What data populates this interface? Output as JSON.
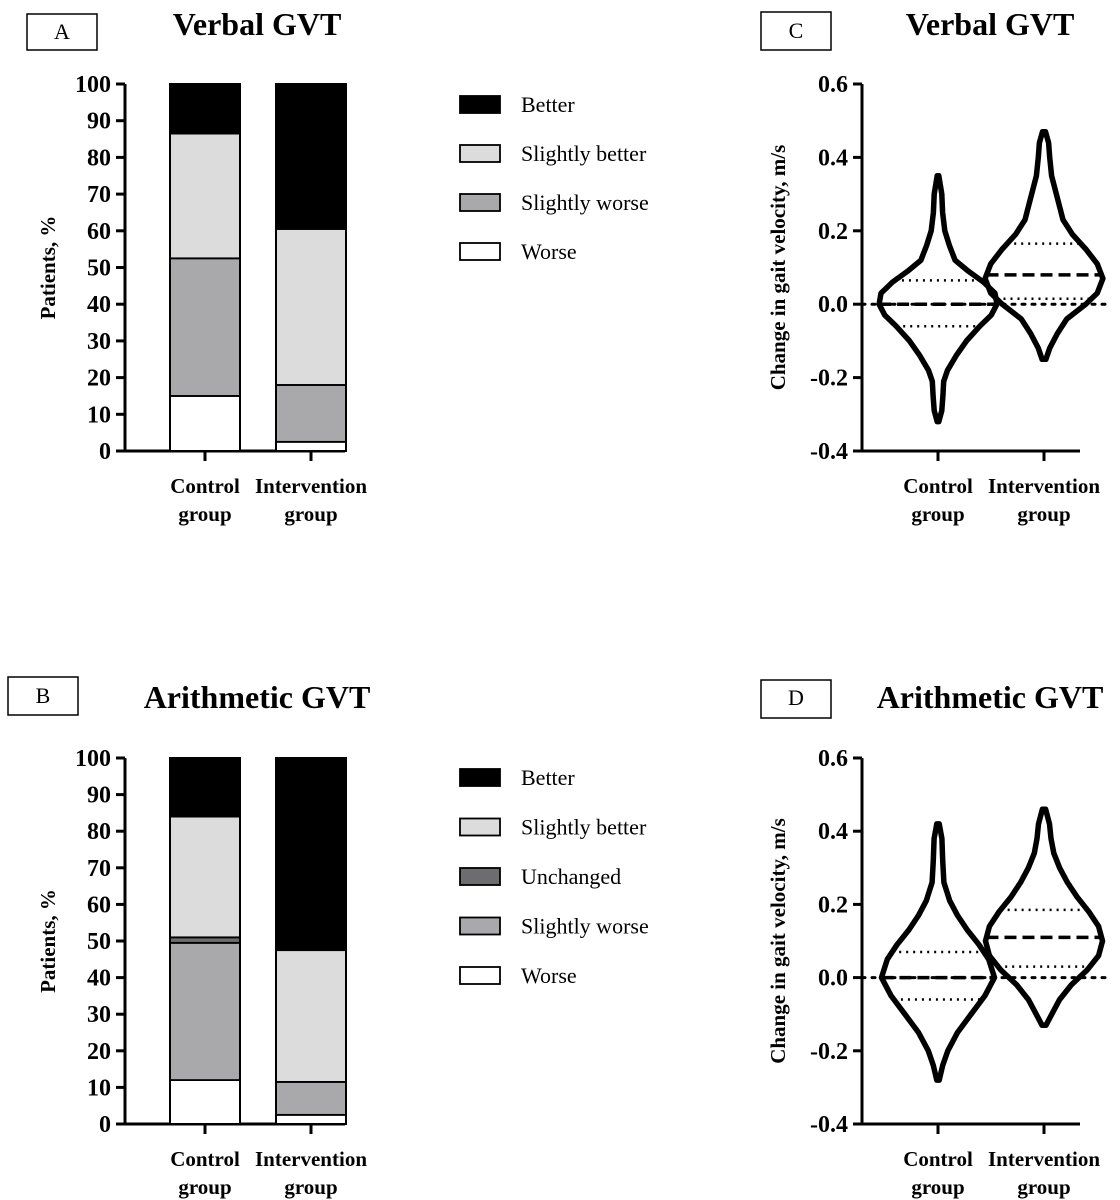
{
  "chart_data": [
    {
      "panel": "A",
      "type": "stacked-bar",
      "title": "Verbal GVT",
      "ylabel": "Patients, %",
      "ylim": [
        0,
        100
      ],
      "yticks": [
        0,
        10,
        20,
        30,
        40,
        50,
        60,
        70,
        80,
        90,
        100
      ],
      "categories": [
        "Control\ngroup",
        "Intervention\ngroup"
      ],
      "series": [
        {
          "name": "Worse",
          "color": "#ffffff",
          "values": [
            15,
            2.5
          ]
        },
        {
          "name": "Slightly worse",
          "color": "#a9a9ac",
          "values": [
            37.5,
            15.5
          ]
        },
        {
          "name": "Slightly better",
          "color": "#dcdcdc",
          "values": [
            34,
            42.5
          ]
        },
        {
          "name": "Better",
          "color": "#000000",
          "values": [
            13.5,
            39.5
          ]
        }
      ],
      "legend": [
        "Better",
        "Slightly better",
        "Slightly worse",
        "Worse"
      ],
      "legend_position": "right"
    },
    {
      "panel": "B",
      "type": "stacked-bar",
      "title": "Arithmetic GVT",
      "ylabel": "Patients, %",
      "ylim": [
        0,
        100
      ],
      "yticks": [
        0,
        10,
        20,
        30,
        40,
        50,
        60,
        70,
        80,
        90,
        100
      ],
      "categories": [
        "Control\ngroup",
        "Intervention\ngroup"
      ],
      "series": [
        {
          "name": "Worse",
          "color": "#ffffff",
          "values": [
            12,
            2.5
          ]
        },
        {
          "name": "Slightly worse",
          "color": "#a9a9ac",
          "values": [
            37.5,
            9
          ]
        },
        {
          "name": "Unchanged",
          "color": "#6d6d6f",
          "values": [
            1.5,
            0
          ]
        },
        {
          "name": "Slightly better",
          "color": "#dcdcdc",
          "values": [
            33,
            36
          ]
        },
        {
          "name": "Better",
          "color": "#000000",
          "values": [
            16,
            52.5
          ]
        }
      ],
      "legend": [
        "Better",
        "Slightly better",
        "Unchanged",
        "Slightly worse",
        "Worse"
      ],
      "legend_position": "right"
    },
    {
      "panel": "C",
      "type": "violin",
      "title": "Verbal GVT",
      "ylabel": "Change in gait velocity, m/s",
      "ylim": [
        -0.4,
        0.6
      ],
      "yticks": [
        -0.4,
        -0.2,
        0.0,
        0.2,
        0.4,
        0.6
      ],
      "ytick_labels": [
        "-0.4",
        "-0.2",
        "0.0",
        "0.2",
        "0.4",
        "0.6"
      ],
      "reference_line": 0.0,
      "categories": [
        "Control\ngroup",
        "Intervention\ngroup"
      ],
      "violins": [
        {
          "group": "Control group",
          "min": -0.32,
          "max": 0.35,
          "q1": -0.06,
          "median": 0.0,
          "q3": 0.065,
          "profile": [
            [
              -0.32,
              0.002
            ],
            [
              -0.29,
              0.01
            ],
            [
              -0.25,
              0.013
            ],
            [
              -0.21,
              0.015
            ],
            [
              -0.18,
              0.025
            ],
            [
              -0.14,
              0.048
            ],
            [
              -0.1,
              0.075
            ],
            [
              -0.06,
              0.11
            ],
            [
              -0.03,
              0.14
            ],
            [
              0.0,
              0.155
            ],
            [
              0.03,
              0.15
            ],
            [
              0.06,
              0.12
            ],
            [
              0.09,
              0.08
            ],
            [
              0.12,
              0.045
            ],
            [
              0.16,
              0.03
            ],
            [
              0.2,
              0.018
            ],
            [
              0.25,
              0.012
            ],
            [
              0.3,
              0.01
            ],
            [
              0.35,
              0.002
            ]
          ]
        },
        {
          "group": "Intervention group",
          "min": -0.15,
          "max": 0.47,
          "q1": 0.015,
          "median": 0.08,
          "q3": 0.165,
          "profile": [
            [
              -0.15,
              0.005
            ],
            [
              -0.12,
              0.015
            ],
            [
              -0.08,
              0.035
            ],
            [
              -0.04,
              0.06
            ],
            [
              0.0,
              0.11
            ],
            [
              0.03,
              0.14
            ],
            [
              0.07,
              0.155
            ],
            [
              0.11,
              0.14
            ],
            [
              0.15,
              0.11
            ],
            [
              0.19,
              0.075
            ],
            [
              0.23,
              0.05
            ],
            [
              0.27,
              0.04
            ],
            [
              0.31,
              0.03
            ],
            [
              0.35,
              0.02
            ],
            [
              0.4,
              0.015
            ],
            [
              0.44,
              0.012
            ],
            [
              0.47,
              0.004
            ]
          ]
        }
      ]
    },
    {
      "panel": "D",
      "type": "violin",
      "title": "Arithmetic GVT",
      "ylabel": "Change in gait velocity, m/s",
      "ylim": [
        -0.4,
        0.6
      ],
      "yticks": [
        -0.4,
        -0.2,
        0.0,
        0.2,
        0.4,
        0.6
      ],
      "ytick_labels": [
        "-0.4",
        "-0.2",
        "0.0",
        "0.2",
        "0.4",
        "0.6"
      ],
      "reference_line": 0.0,
      "categories": [
        "Control\ngroup",
        "Intervention\ngroup"
      ],
      "violins": [
        {
          "group": "Control group",
          "min": -0.28,
          "max": 0.42,
          "q1": -0.06,
          "median": 0.0,
          "q3": 0.07,
          "profile": [
            [
              -0.28,
              0.003
            ],
            [
              -0.24,
              0.012
            ],
            [
              -0.2,
              0.025
            ],
            [
              -0.15,
              0.05
            ],
            [
              -0.1,
              0.085
            ],
            [
              -0.05,
              0.12
            ],
            [
              0.0,
              0.145
            ],
            [
              0.05,
              0.13
            ],
            [
              0.09,
              0.105
            ],
            [
              0.13,
              0.075
            ],
            [
              0.17,
              0.05
            ],
            [
              0.21,
              0.03
            ],
            [
              0.26,
              0.015
            ],
            [
              0.32,
              0.012
            ],
            [
              0.38,
              0.01
            ],
            [
              0.42,
              0.003
            ]
          ]
        },
        {
          "group": "Intervention group",
          "min": -0.13,
          "max": 0.46,
          "q1": 0.03,
          "median": 0.11,
          "q3": 0.185,
          "profile": [
            [
              -0.13,
              0.005
            ],
            [
              -0.1,
              0.02
            ],
            [
              -0.06,
              0.04
            ],
            [
              -0.02,
              0.07
            ],
            [
              0.02,
              0.11
            ],
            [
              0.06,
              0.14
            ],
            [
              0.1,
              0.15
            ],
            [
              0.14,
              0.14
            ],
            [
              0.18,
              0.115
            ],
            [
              0.22,
              0.085
            ],
            [
              0.26,
              0.06
            ],
            [
              0.3,
              0.04
            ],
            [
              0.34,
              0.025
            ],
            [
              0.38,
              0.018
            ],
            [
              0.42,
              0.014
            ],
            [
              0.46,
              0.004
            ]
          ]
        }
      ]
    }
  ]
}
